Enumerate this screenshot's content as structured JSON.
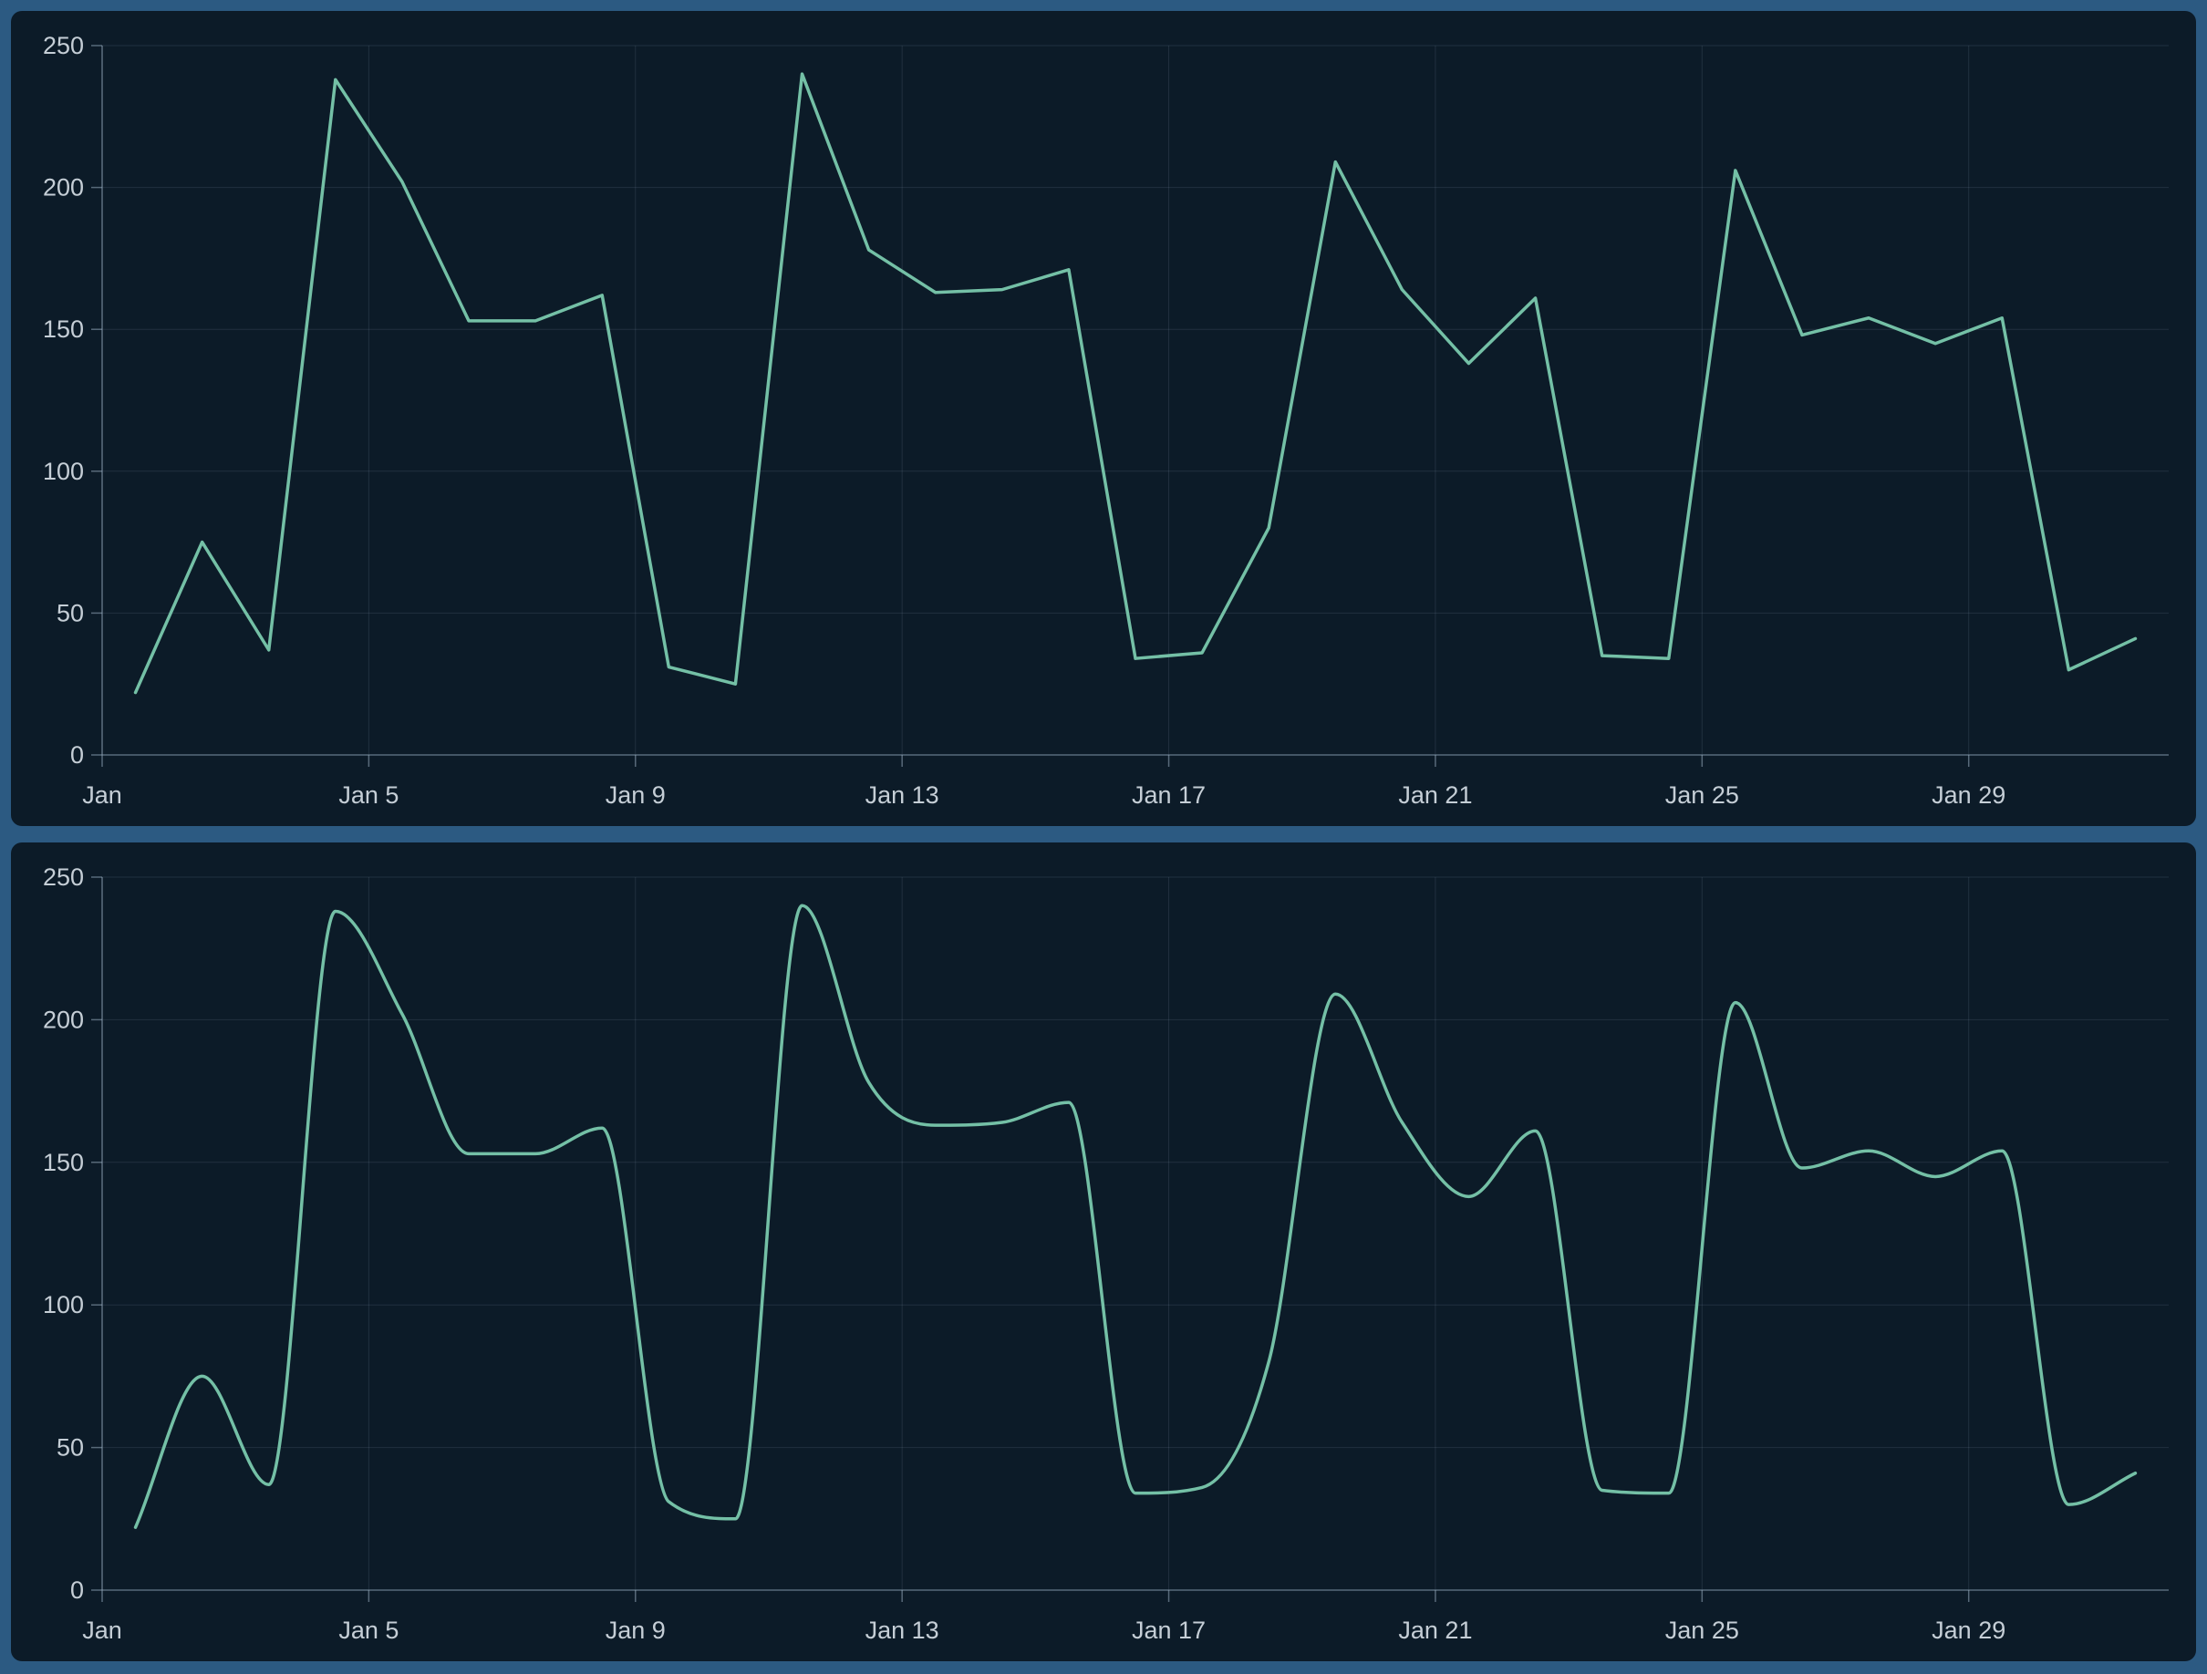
{
  "colors": {
    "frame_background": "#2c5a82",
    "panel_background": "#0c1b28",
    "series_line": "#74c0a6",
    "grid_line": "rgba(140,163,184,0.16)",
    "axis_line": "rgba(152,172,190,0.55)",
    "tick_label": "#c5ced6"
  },
  "chart_data": [
    {
      "type": "line",
      "interpolation": "linear",
      "title": "",
      "xlabel": "",
      "ylabel": "",
      "legend": false,
      "grid": true,
      "ylim": [
        0,
        250
      ],
      "ytick_labels": [
        "0",
        "50",
        "100",
        "150",
        "200",
        "250"
      ],
      "yticks": [
        0,
        50,
        100,
        150,
        200,
        250
      ],
      "x_tick_labels": [
        "Jan",
        "Jan 5",
        "Jan 9",
        "Jan 13",
        "Jan 17",
        "Jan 21",
        "Jan 25",
        "Jan 29"
      ],
      "x_tick_every_days": 4,
      "x": [
        "Jan 1",
        "Jan 2",
        "Jan 3",
        "Jan 4",
        "Jan 5",
        "Jan 6",
        "Jan 7",
        "Jan 8",
        "Jan 9",
        "Jan 10",
        "Jan 11",
        "Jan 12",
        "Jan 13",
        "Jan 14",
        "Jan 15",
        "Jan 16",
        "Jan 17",
        "Jan 18",
        "Jan 19",
        "Jan 20",
        "Jan 21",
        "Jan 22",
        "Jan 23",
        "Jan 24",
        "Jan 25",
        "Jan 26",
        "Jan 27",
        "Jan 28",
        "Jan 29",
        "Jan 30",
        "Jan 31"
      ],
      "values": [
        22,
        75,
        37,
        238,
        202,
        153,
        153,
        162,
        31,
        25,
        240,
        178,
        163,
        164,
        171,
        34,
        36,
        80,
        209,
        164,
        138,
        161,
        35,
        34,
        206,
        148,
        154,
        145,
        154,
        30,
        41
      ]
    },
    {
      "type": "line",
      "interpolation": "smooth",
      "title": "",
      "xlabel": "",
      "ylabel": "",
      "legend": false,
      "grid": true,
      "ylim": [
        0,
        250
      ],
      "ytick_labels": [
        "0",
        "50",
        "100",
        "150",
        "200",
        "250"
      ],
      "yticks": [
        0,
        50,
        100,
        150,
        200,
        250
      ],
      "x_tick_labels": [
        "Jan",
        "Jan 5",
        "Jan 9",
        "Jan 13",
        "Jan 17",
        "Jan 21",
        "Jan 25",
        "Jan 29"
      ],
      "x_tick_every_days": 4,
      "x": [
        "Jan 1",
        "Jan 2",
        "Jan 3",
        "Jan 4",
        "Jan 5",
        "Jan 6",
        "Jan 7",
        "Jan 8",
        "Jan 9",
        "Jan 10",
        "Jan 11",
        "Jan 12",
        "Jan 13",
        "Jan 14",
        "Jan 15",
        "Jan 16",
        "Jan 17",
        "Jan 18",
        "Jan 19",
        "Jan 20",
        "Jan 21",
        "Jan 22",
        "Jan 23",
        "Jan 24",
        "Jan 25",
        "Jan 26",
        "Jan 27",
        "Jan 28",
        "Jan 29",
        "Jan 30",
        "Jan 31"
      ],
      "values": [
        22,
        75,
        37,
        238,
        202,
        153,
        153,
        162,
        31,
        25,
        240,
        178,
        163,
        164,
        171,
        34,
        36,
        80,
        209,
        164,
        138,
        161,
        35,
        34,
        206,
        148,
        154,
        145,
        154,
        30,
        41
      ]
    }
  ]
}
